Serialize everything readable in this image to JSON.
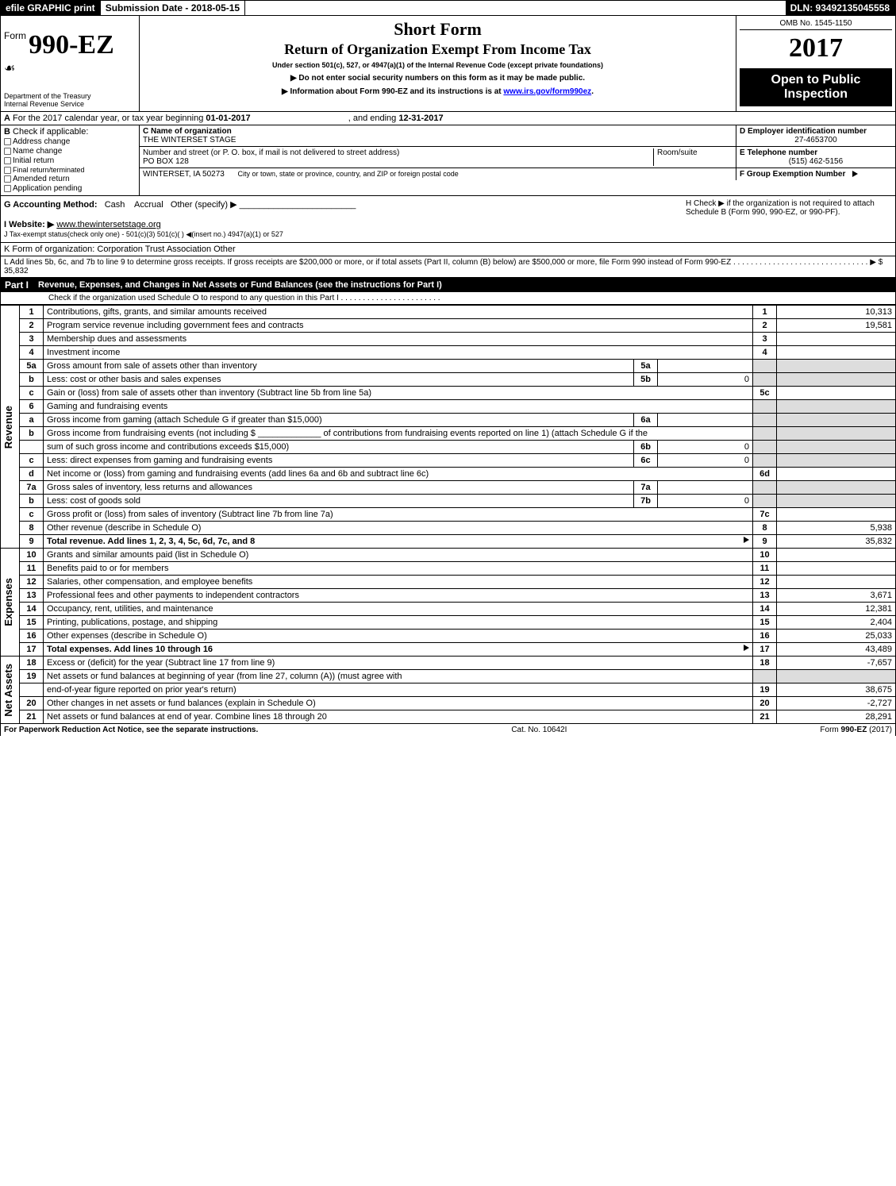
{
  "topbar": {
    "efile": "efile GRAPHIC print",
    "submission": "Submission Date - 2018-05-15",
    "dln": "DLN: 93492135045558"
  },
  "header": {
    "form_prefix": "Form",
    "form_number": "990-EZ",
    "dept1": "Department of the Treasury",
    "dept2": "Internal Revenue Service",
    "short_form": "Short Form",
    "title": "Return of Organization Exempt From Income Tax",
    "under": "Under section 501(c), 527, or 4947(a)(1) of the Internal Revenue Code (except private foundations)",
    "note1": "▶ Do not enter social security numbers on this form as it may be made public.",
    "note2_pre": "▶ Information about Form 990-EZ and its instructions is at ",
    "note2_link": "www.irs.gov/form990ez",
    "note2_post": ".",
    "omb": "OMB No. 1545-1150",
    "year": "2017",
    "open": "Open to Public Inspection"
  },
  "line_a": {
    "pre": "For the 2017 calendar year, or tax year beginning ",
    "beg": "01-01-2017",
    "mid": ", and ending ",
    "end": "12-31-2017"
  },
  "line_b": {
    "label": "Check if applicable:",
    "items": [
      "Address change",
      "Name change",
      "Initial return",
      "Final return/terminated",
      "Amended return",
      "Application pending"
    ]
  },
  "line_c": {
    "label": "C Name of organization",
    "value": "THE WINTERSET STAGE",
    "addr_label": "Number and street (or P. O. box, if mail is not delivered to street address)",
    "addr": "PO BOX 128",
    "room_label": "Room/suite",
    "city_label": "City or town, state or province, country, and ZIP or foreign postal code",
    "city": "WINTERSET, IA  50273"
  },
  "line_d": {
    "label": "D Employer identification number",
    "value": "27-4653700"
  },
  "line_e": {
    "label": "E Telephone number",
    "value": "(515) 462-5156"
  },
  "line_f": {
    "label": "F Group Exemption Number",
    "arrow": "▶"
  },
  "line_g_pre": "G Accounting Method:",
  "line_g_cash": "Cash",
  "line_g_accrual": "Accrual",
  "line_g_other": "Other (specify) ▶",
  "line_h": "H  Check ▶     if the organization is not required to attach Schedule B (Form 990, 990-EZ, or 990-PF).",
  "line_i_pre": "I Website: ▶",
  "line_i_val": "www.thewintersetstage.org",
  "line_j": "J Tax-exempt status(check only one) -    501(c)(3)    501(c)(  ) ◀(insert no.)    4947(a)(1) or    527",
  "line_k": "K Form of organization:    Corporation    Trust    Association    Other",
  "line_l_pre": "L Add lines 5b, 6c, and 7b to line 9 to determine gross receipts. If gross receipts are $200,000 or more, or if total assets (Part II, column (B) below) are $500,000 or more, file Form 990 instead of Form 990-EZ  .  .  .  .  .  .  .  .  .  .  .  .  .  .  .  .  .  .  .  .  .  .  .  .  .  .  .  .  .  .  .  ▶ $ ",
  "line_l_amt": "35,832",
  "part1": {
    "label": "Part I",
    "title": "Revenue, Expenses, and Changes in Net Assets or Fund Balances (see the instructions for Part I)",
    "check": "Check if the organization used Schedule O to respond to any question in this Part I  .  .  .  .  .  .  .  .  .  .  .  .  .  .  .  .  .  .  .  .  .  .  ."
  },
  "sections": {
    "revenue": "Revenue",
    "expenses": "Expenses",
    "netassets": "Net Assets"
  },
  "rows": [
    {
      "n": "1",
      "t": "Contributions, gifts, grants, and similar amounts received",
      "r": "1",
      "a": "10,313"
    },
    {
      "n": "2",
      "t": "Program service revenue including government fees and contracts",
      "r": "2",
      "a": "19,581"
    },
    {
      "n": "3",
      "t": "Membership dues and assessments",
      "r": "3",
      "a": ""
    },
    {
      "n": "4",
      "t": "Investment income",
      "r": "4",
      "a": ""
    },
    {
      "n": "5a",
      "t": "Gross amount from sale of assets other than inventory",
      "sub": "5a",
      "subv": ""
    },
    {
      "n": "b",
      "t": "Less: cost or other basis and sales expenses",
      "sub": "5b",
      "subv": "0"
    },
    {
      "n": "c",
      "t": "Gain or (loss) from sale of assets other than inventory (Subtract line 5b from line 5a)",
      "r": "5c",
      "a": ""
    },
    {
      "n": "6",
      "t": "Gaming and fundraising events"
    },
    {
      "n": "a",
      "t": "Gross income from gaming (attach Schedule G if greater than $15,000)",
      "sub": "6a",
      "subv": ""
    },
    {
      "n": "b",
      "t": "Gross income from fundraising events (not including $ _____________ of contributions from fundraising events reported on line 1) (attach Schedule G if the"
    },
    {
      "n": "",
      "t": "sum of such gross income and contributions exceeds $15,000)",
      "sub": "6b",
      "subv": "0"
    },
    {
      "n": "c",
      "t": "Less: direct expenses from gaming and fundraising events",
      "sub": "6c",
      "subv": "0"
    },
    {
      "n": "d",
      "t": "Net income or (loss) from gaming and fundraising events (add lines 6a and 6b and subtract line 6c)",
      "r": "6d",
      "a": ""
    },
    {
      "n": "7a",
      "t": "Gross sales of inventory, less returns and allowances",
      "sub": "7a",
      "subv": ""
    },
    {
      "n": "b",
      "t": "Less: cost of goods sold",
      "sub": "7b",
      "subv": "0"
    },
    {
      "n": "c",
      "t": "Gross profit or (loss) from sales of inventory (Subtract line 7b from line 7a)",
      "r": "7c",
      "a": ""
    },
    {
      "n": "8",
      "t": "Other revenue (describe in Schedule O)",
      "r": "8",
      "a": "5,938"
    },
    {
      "n": "9",
      "t": "Total revenue. Add lines 1, 2, 3, 4, 5c, 6d, 7c, and 8",
      "r": "9",
      "a": "35,832",
      "bold": true,
      "arrow": true
    }
  ],
  "exp_rows": [
    {
      "n": "10",
      "t": "Grants and similar amounts paid (list in Schedule O)",
      "r": "10",
      "a": ""
    },
    {
      "n": "11",
      "t": "Benefits paid to or for members",
      "r": "11",
      "a": ""
    },
    {
      "n": "12",
      "t": "Salaries, other compensation, and employee benefits",
      "r": "12",
      "a": ""
    },
    {
      "n": "13",
      "t": "Professional fees and other payments to independent contractors",
      "r": "13",
      "a": "3,671"
    },
    {
      "n": "14",
      "t": "Occupancy, rent, utilities, and maintenance",
      "r": "14",
      "a": "12,381"
    },
    {
      "n": "15",
      "t": "Printing, publications, postage, and shipping",
      "r": "15",
      "a": "2,404"
    },
    {
      "n": "16",
      "t": "Other expenses (describe in Schedule O)",
      "r": "16",
      "a": "25,033"
    },
    {
      "n": "17",
      "t": "Total expenses. Add lines 10 through 16",
      "r": "17",
      "a": "43,489",
      "bold": true,
      "arrow": true
    }
  ],
  "na_rows": [
    {
      "n": "18",
      "t": "Excess or (deficit) for the year (Subtract line 17 from line 9)",
      "r": "18",
      "a": "-7,657"
    },
    {
      "n": "19",
      "t": "Net assets or fund balances at beginning of year (from line 27, column (A)) (must agree with"
    },
    {
      "n": "",
      "t": "end-of-year figure reported on prior year's return)",
      "r": "19",
      "a": "38,675"
    },
    {
      "n": "20",
      "t": "Other changes in net assets or fund balances (explain in Schedule O)",
      "r": "20",
      "a": "-2,727"
    },
    {
      "n": "21",
      "t": "Net assets or fund balances at end of year. Combine lines 18 through 20",
      "r": "21",
      "a": "28,291"
    }
  ],
  "footer": {
    "left": "For Paperwork Reduction Act Notice, see the separate instructions.",
    "mid": "Cat. No. 10642I",
    "right_pre": "Form ",
    "right_form": "990-EZ",
    "right_post": " (2017)"
  }
}
